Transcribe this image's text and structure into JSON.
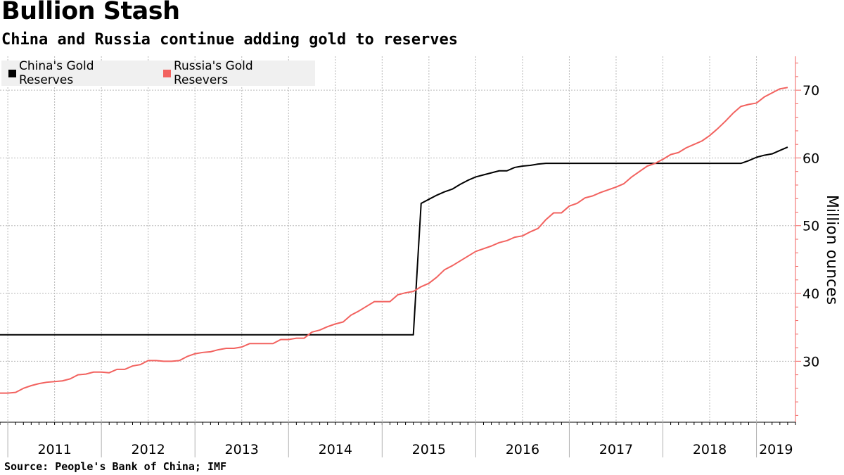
{
  "header": {
    "title": "Bullion Stash",
    "subtitle": "China and Russia continue adding gold to reserves"
  },
  "footer": {
    "source": "Source: People's Bank of China; IMF"
  },
  "colors": {
    "china": "#000000",
    "russia": "#f2625f",
    "grid": "#b8b8b8",
    "axis": "#f2625f"
  },
  "chart_data": {
    "type": "line",
    "title": "Bullion Stash",
    "subtitle": "China and Russia continue adding gold to reserves",
    "ylabel": "Million ounces",
    "xlabel": "",
    "ylim": [
      21,
      75
    ],
    "xlim": [
      "2010-12",
      "2019-06"
    ],
    "yticks": [
      30,
      40,
      50,
      60,
      70
    ],
    "xticks": [
      "2011",
      "2012",
      "2013",
      "2014",
      "2015",
      "2016",
      "2017",
      "2018",
      "2019"
    ],
    "grid": true,
    "legend_position": "top-left",
    "series": [
      {
        "name": "China's Gold Reserves",
        "color": "#000000",
        "points": [
          [
            "2010-12",
            33.9
          ],
          [
            "2015-05",
            33.9
          ],
          [
            "2015-06",
            53.3
          ],
          [
            "2015-07",
            53.9
          ],
          [
            "2015-08",
            54.5
          ],
          [
            "2015-09",
            55.0
          ],
          [
            "2015-10",
            55.4
          ],
          [
            "2015-11",
            56.1
          ],
          [
            "2015-12",
            56.7
          ],
          [
            "2016-01",
            57.2
          ],
          [
            "2016-02",
            57.5
          ],
          [
            "2016-03",
            57.8
          ],
          [
            "2016-04",
            58.1
          ],
          [
            "2016-05",
            58.1
          ],
          [
            "2016-06",
            58.6
          ],
          [
            "2016-07",
            58.8
          ],
          [
            "2016-08",
            58.9
          ],
          [
            "2016-09",
            59.1
          ],
          [
            "2016-10",
            59.2
          ],
          [
            "2016-11",
            59.2
          ],
          [
            "2018-11",
            59.2
          ],
          [
            "2018-12",
            59.6
          ],
          [
            "2019-01",
            60.1
          ],
          [
            "2019-02",
            60.4
          ],
          [
            "2019-03",
            60.6
          ],
          [
            "2019-04",
            61.1
          ],
          [
            "2019-05",
            61.6
          ]
        ]
      },
      {
        "name": "Russia's Gold Resevers",
        "color": "#f2625f",
        "points": [
          [
            "2010-12",
            25.3
          ],
          [
            "2011-01",
            25.3
          ],
          [
            "2011-02",
            25.4
          ],
          [
            "2011-03",
            26.0
          ],
          [
            "2011-04",
            26.4
          ],
          [
            "2011-05",
            26.7
          ],
          [
            "2011-06",
            26.9
          ],
          [
            "2011-07",
            27.0
          ],
          [
            "2011-08",
            27.1
          ],
          [
            "2011-09",
            27.4
          ],
          [
            "2011-10",
            28.0
          ],
          [
            "2011-11",
            28.1
          ],
          [
            "2011-12",
            28.4
          ],
          [
            "2012-01",
            28.4
          ],
          [
            "2012-02",
            28.3
          ],
          [
            "2012-03",
            28.8
          ],
          [
            "2012-04",
            28.8
          ],
          [
            "2012-05",
            29.3
          ],
          [
            "2012-06",
            29.5
          ],
          [
            "2012-07",
            30.1
          ],
          [
            "2012-08",
            30.1
          ],
          [
            "2012-09",
            30.0
          ],
          [
            "2012-10",
            30.0
          ],
          [
            "2012-11",
            30.1
          ],
          [
            "2012-12",
            30.7
          ],
          [
            "2013-01",
            31.1
          ],
          [
            "2013-02",
            31.3
          ],
          [
            "2013-03",
            31.4
          ],
          [
            "2013-04",
            31.7
          ],
          [
            "2013-05",
            31.9
          ],
          [
            "2013-06",
            31.9
          ],
          [
            "2013-07",
            32.1
          ],
          [
            "2013-08",
            32.6
          ],
          [
            "2013-09",
            32.6
          ],
          [
            "2013-10",
            32.6
          ],
          [
            "2013-11",
            32.6
          ],
          [
            "2013-12",
            33.2
          ],
          [
            "2014-01",
            33.2
          ],
          [
            "2014-02",
            33.4
          ],
          [
            "2014-03",
            33.4
          ],
          [
            "2014-04",
            34.3
          ],
          [
            "2014-05",
            34.6
          ],
          [
            "2014-06",
            35.1
          ],
          [
            "2014-07",
            35.5
          ],
          [
            "2014-08",
            35.8
          ],
          [
            "2014-09",
            36.8
          ],
          [
            "2014-10",
            37.4
          ],
          [
            "2014-11",
            38.1
          ],
          [
            "2014-12",
            38.8
          ],
          [
            "2015-01",
            38.8
          ],
          [
            "2015-02",
            38.8
          ],
          [
            "2015-03",
            39.8
          ],
          [
            "2015-04",
            40.1
          ],
          [
            "2015-05",
            40.3
          ],
          [
            "2015-06",
            41.0
          ],
          [
            "2015-07",
            41.5
          ],
          [
            "2015-08",
            42.4
          ],
          [
            "2015-09",
            43.5
          ],
          [
            "2015-10",
            44.1
          ],
          [
            "2015-11",
            44.8
          ],
          [
            "2015-12",
            45.5
          ],
          [
            "2016-01",
            46.2
          ],
          [
            "2016-02",
            46.6
          ],
          [
            "2016-03",
            47.0
          ],
          [
            "2016-04",
            47.5
          ],
          [
            "2016-05",
            47.8
          ],
          [
            "2016-06",
            48.3
          ],
          [
            "2016-07",
            48.5
          ],
          [
            "2016-08",
            49.1
          ],
          [
            "2016-09",
            49.6
          ],
          [
            "2016-10",
            50.9
          ],
          [
            "2016-11",
            51.9
          ],
          [
            "2016-12",
            51.9
          ],
          [
            "2017-01",
            52.9
          ],
          [
            "2017-02",
            53.3
          ],
          [
            "2017-03",
            54.1
          ],
          [
            "2017-04",
            54.4
          ],
          [
            "2017-05",
            54.9
          ],
          [
            "2017-06",
            55.3
          ],
          [
            "2017-07",
            55.7
          ],
          [
            "2017-08",
            56.2
          ],
          [
            "2017-09",
            57.2
          ],
          [
            "2017-10",
            58.0
          ],
          [
            "2017-11",
            58.8
          ],
          [
            "2017-12",
            59.2
          ],
          [
            "2018-01",
            59.8
          ],
          [
            "2018-02",
            60.5
          ],
          [
            "2018-03",
            60.8
          ],
          [
            "2018-04",
            61.5
          ],
          [
            "2018-05",
            62.0
          ],
          [
            "2018-06",
            62.5
          ],
          [
            "2018-07",
            63.3
          ],
          [
            "2018-08",
            64.3
          ],
          [
            "2018-09",
            65.4
          ],
          [
            "2018-10",
            66.6
          ],
          [
            "2018-11",
            67.6
          ],
          [
            "2018-12",
            67.9
          ],
          [
            "2019-01",
            68.1
          ],
          [
            "2019-02",
            69.0
          ],
          [
            "2019-03",
            69.6
          ],
          [
            "2019-04",
            70.2
          ],
          [
            "2019-05",
            70.4
          ]
        ]
      }
    ]
  }
}
